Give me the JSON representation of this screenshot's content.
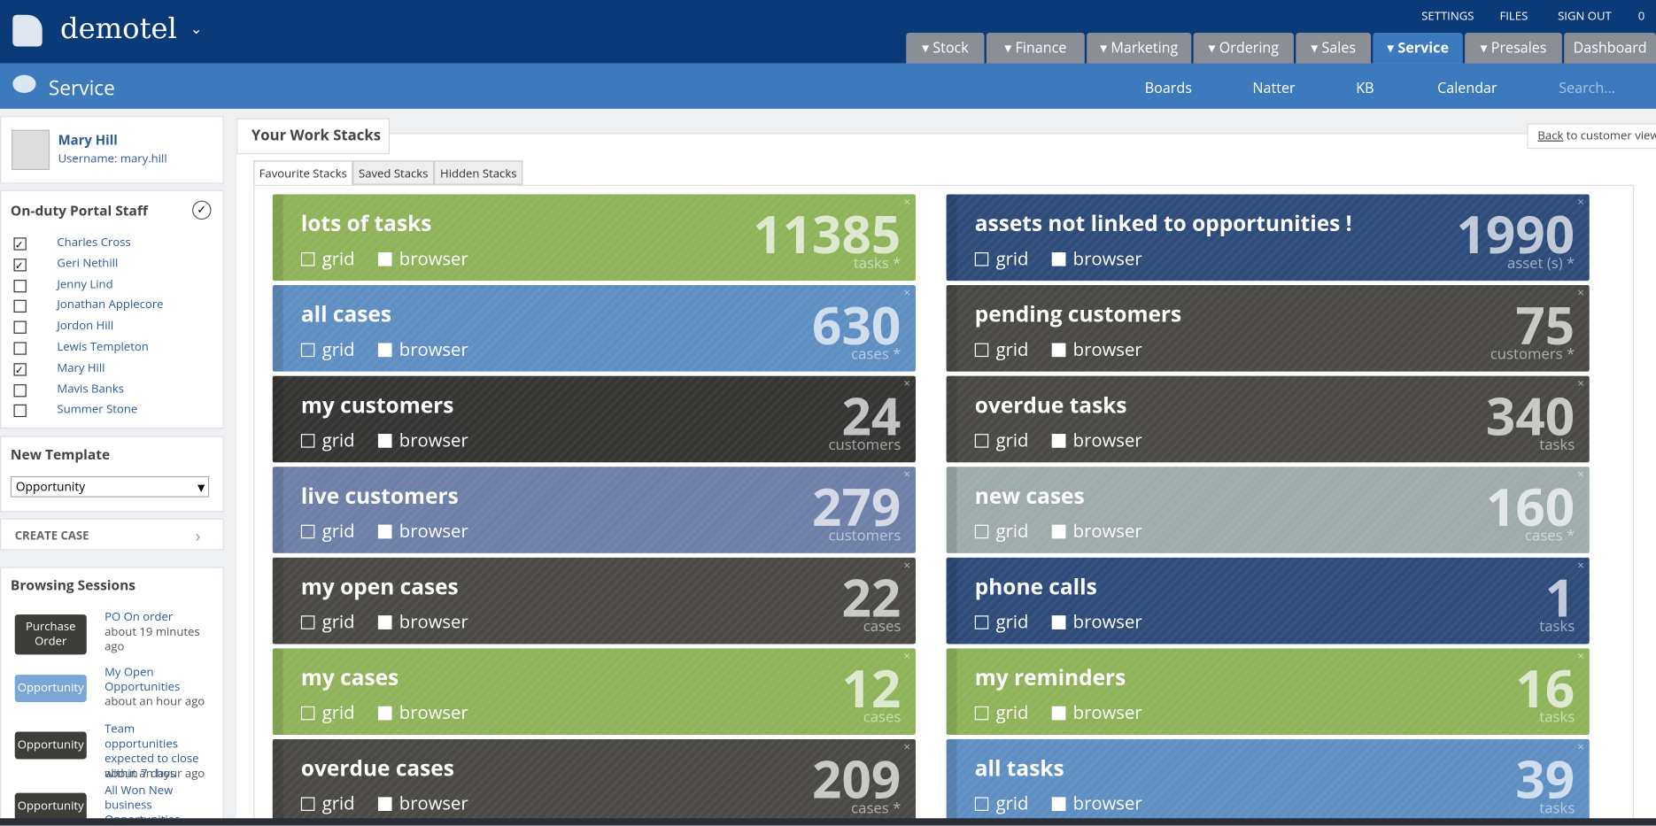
{
  "header": {
    "brand": "demotel",
    "links": [
      "SETTINGS",
      "FILES",
      "SIGN OUT",
      "0"
    ],
    "tabs": [
      "Stock",
      "Finance",
      "Marketing",
      "Ordering",
      "Sales",
      "Service",
      "Presales",
      "Dashboard"
    ],
    "active_tab": 5
  },
  "subheader": {
    "title": "Service",
    "tools": [
      "Boards",
      "Natter",
      "KB",
      "Calendar"
    ],
    "search": "Search..."
  },
  "user": {
    "name": "Mary Hill",
    "username": "Username: mary.hill"
  },
  "staff": {
    "title": "On-duty Portal Staff",
    "members": [
      {
        "name": "Charles Cross",
        "checked": true
      },
      {
        "name": "Geri Nethill",
        "checked": true
      },
      {
        "name": "Jenny Lind",
        "checked": false
      },
      {
        "name": "Jonathan Applecore",
        "checked": false
      },
      {
        "name": "Jordon Hill",
        "checked": false
      },
      {
        "name": "Lewis Templeton",
        "checked": false
      },
      {
        "name": "Mary Hill",
        "checked": true
      },
      {
        "name": "Mavis Banks",
        "checked": false
      },
      {
        "name": "Summer Stone",
        "checked": false
      }
    ]
  },
  "template": {
    "title": "New Template",
    "selected": "Opportunity",
    "create": "CREATE CASE"
  },
  "sessions": {
    "title": "Browsing Sessions",
    "items": [
      {
        "badge": "Purchase Order",
        "text": "PO On order",
        "time": "about 19 minutes ago",
        "color": "#3d3d3a"
      },
      {
        "badge": "Opportunity",
        "text": "My Open Opportunities",
        "time": "about an hour ago",
        "color": "#7aa7d6"
      },
      {
        "badge": "Opportunity",
        "text": "Team opportunities expected to close within 7 days",
        "time": "about an hour ago",
        "color": "#3d3d3a"
      },
      {
        "badge": "Opportunity",
        "text": "All Won New business Opportunities",
        "color": "#3d3d3a"
      }
    ]
  },
  "main": {
    "title": "Your Work Stacks",
    "back": "Back",
    "back_text": "to customer view",
    "tabs": [
      "Favourite Stacks",
      "Saved Stacks",
      "Hidden Stacks"
    ],
    "options": [
      "grid",
      "browser"
    ],
    "columns": [
      [
        {
          "title": "lots of tasks",
          "count": "11385",
          "unit": "tasks *",
          "color": "#8fb35a"
        },
        {
          "title": "all cases",
          "count": "630",
          "unit": "cases *",
          "color": "#5f8fc2"
        },
        {
          "title": "my customers",
          "count": "24",
          "unit": "customers",
          "color": "#353533"
        },
        {
          "title": "live customers",
          "count": "279",
          "unit": "customers",
          "color": "#6e80a9"
        },
        {
          "title": "my open cases",
          "count": "22",
          "unit": "cases",
          "color": "#4a4945"
        },
        {
          "title": "my cases",
          "count": "12",
          "unit": "cases",
          "color": "#8fb35a"
        },
        {
          "title": "overdue cases",
          "count": "209",
          "unit": "cases *",
          "color": "#4a4945"
        }
      ],
      [
        {
          "title": "assets not linked to opportunities !",
          "count": "1990",
          "unit": "asset (s) *",
          "color": "#2d4c7a"
        },
        {
          "title": "pending customers",
          "count": "75",
          "unit": "customers *",
          "color": "#4a4945"
        },
        {
          "title": "overdue tasks",
          "count": "340",
          "unit": "tasks",
          "color": "#4a4945"
        },
        {
          "title": "new cases",
          "count": "160",
          "unit": "cases *",
          "color": "#9eaaab"
        },
        {
          "title": "phone calls",
          "count": "1",
          "unit": "tasks",
          "color": "#2d4c7a"
        },
        {
          "title": "my reminders",
          "count": "16",
          "unit": "tasks",
          "color": "#8fb35a"
        },
        {
          "title": "all tasks",
          "count": "39",
          "unit": "tasks",
          "color": "#5f8fc2"
        }
      ]
    ]
  }
}
